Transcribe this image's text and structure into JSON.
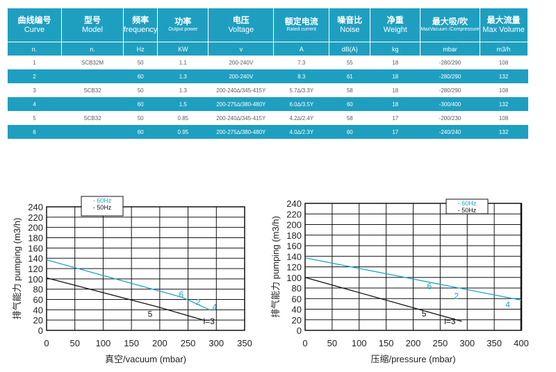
{
  "table": {
    "headers": [
      {
        "zh": "曲线编号",
        "en": "Curve",
        "unit": "n."
      },
      {
        "zh": "型号",
        "en": "Model",
        "unit": "n."
      },
      {
        "zh": "频率",
        "en": "frequency",
        "unit": "Hz"
      },
      {
        "zh": "功率",
        "en": "Output power",
        "unit": "KW"
      },
      {
        "zh": "电压",
        "en": "Voltage",
        "unit": "v"
      },
      {
        "zh": "额定电流",
        "en": "Rated current",
        "unit": "A"
      },
      {
        "zh": "噪音比",
        "en": "Noise",
        "unit": "dB(A)"
      },
      {
        "zh": "净重",
        "en": "Weight",
        "unit": "kg"
      },
      {
        "zh": "最大吸/吹",
        "en": "MaxVacuum /Compressure",
        "unit": "mbar"
      },
      {
        "zh": "最大流量",
        "en": "Max Volume",
        "unit": "m3/h"
      }
    ],
    "rows": [
      [
        "1",
        "SCB32M",
        "50",
        "1.1",
        "200-240V",
        "7.3",
        "55",
        "18",
        "-280/290",
        "108"
      ],
      [
        "2",
        "",
        "60",
        "1.3",
        "200-240V",
        "8.3",
        "61",
        "18",
        "-280/290",
        "132"
      ],
      [
        "3",
        "SCB32",
        "50",
        "1.3",
        "200-240∆/345-415Y",
        "5.7∆/3.3Y",
        "58",
        "18",
        "-280/290",
        "108"
      ],
      [
        "4",
        "",
        "60",
        "1.5",
        "200-275∆/380-480Y",
        "6.0∆/3.5Y",
        "60",
        "18",
        "-300/400",
        "132"
      ],
      [
        "5",
        "SCB32",
        "50",
        "0.85",
        "200-240∆/345-415Y",
        "4.2∆/2.4Y",
        "58",
        "17",
        "-200/230",
        "108"
      ],
      [
        "6",
        "",
        "60",
        "0.95",
        "200-275∆/380-480Y",
        "4.0∆/2.3Y",
        "60",
        "17",
        "-240/240",
        "132"
      ]
    ]
  },
  "chart_data": [
    {
      "type": "line",
      "xlabel": "真空/vacuum  (mbar)",
      "ylabel": "排气能力 pumping (m3/h)",
      "xlim": [
        0,
        350
      ],
      "ylim": [
        0,
        240
      ],
      "xticks": [
        0,
        50,
        100,
        150,
        200,
        250,
        300,
        350
      ],
      "yticks": [
        0,
        20,
        40,
        60,
        80,
        100,
        120,
        140,
        160,
        180,
        200,
        220,
        240
      ],
      "legend": [
        "- 60Hz",
        "- 50Hz"
      ],
      "series": [
        {
          "name": "60Hz",
          "color": "#1fa3c6",
          "x": [
            0,
            240,
            290
          ],
          "y": [
            137,
            64,
            39
          ]
        },
        {
          "name": "50Hz",
          "color": "#111111",
          "x": [
            0,
            195,
            280
          ],
          "y": [
            102,
            46,
            19
          ]
        }
      ],
      "point_labels": [
        {
          "text": "6",
          "color": "#1fa3c6",
          "x": 238,
          "y": 64
        },
        {
          "text": "2",
          "color": "#1fa3c6",
          "x": 268,
          "y": 49
        },
        {
          "text": "4",
          "color": "#1fa3c6",
          "x": 297,
          "y": 40
        },
        {
          "text": "5",
          "color": "#111111",
          "x": 183,
          "y": 26
        },
        {
          "text": "l=3",
          "color": "#111111",
          "x": 287,
          "y": 12
        }
      ]
    },
    {
      "type": "line",
      "xlabel": "压缩/pressure  (mbar)",
      "ylabel": "排气能力 pumping (m3/h)",
      "xlim": [
        0,
        400
      ],
      "ylim": [
        0,
        240
      ],
      "xticks": [
        0,
        50,
        100,
        150,
        200,
        250,
        300,
        350,
        400
      ],
      "yticks": [
        0,
        20,
        40,
        60,
        80,
        100,
        120,
        140,
        160,
        180,
        200,
        220,
        240
      ],
      "legend": [
        "- 60Hz",
        "- 50Hz"
      ],
      "series": [
        {
          "name": "60Hz",
          "color": "#1fa3c6",
          "x": [
            0,
            400
          ],
          "y": [
            137,
            57
          ]
        },
        {
          "name": "50Hz",
          "color": "#111111",
          "x": [
            0,
            290
          ],
          "y": [
            100,
            17
          ]
        }
      ],
      "point_labels": [
        {
          "text": "6",
          "color": "#1fa3c6",
          "x": 230,
          "y": 78
        },
        {
          "text": "2",
          "color": "#1fa3c6",
          "x": 280,
          "y": 60
        },
        {
          "text": "4",
          "color": "#1fa3c6",
          "x": 375,
          "y": 43
        },
        {
          "text": "5",
          "color": "#111111",
          "x": 220,
          "y": 26
        },
        {
          "text": "l=3",
          "color": "#111111",
          "x": 268,
          "y": 12
        }
      ]
    }
  ]
}
